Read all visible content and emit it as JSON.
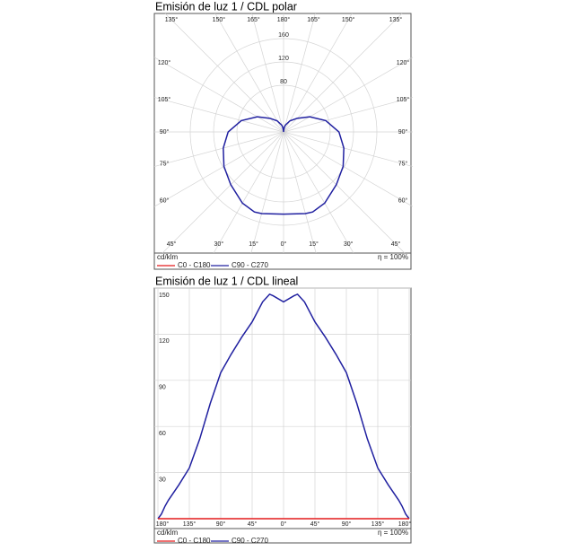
{
  "chart_data": [
    {
      "type": "polar",
      "title": "Emisión de luz 1 / CDL polar",
      "unit": "cd/klm",
      "efficiency": "η = 100%",
      "angle_ticks": [
        {
          "value": 0,
          "label": "0°"
        },
        {
          "value": 15,
          "label": "15°"
        },
        {
          "value": 30,
          "label": "30°"
        },
        {
          "value": 45,
          "label": "45°"
        },
        {
          "value": 60,
          "label": "60°"
        },
        {
          "value": 75,
          "label": "75°"
        },
        {
          "value": 90,
          "label": "90°"
        },
        {
          "value": 105,
          "label": "105°"
        },
        {
          "value": 120,
          "label": "120°"
        },
        {
          "value": 135,
          "label": "135°"
        },
        {
          "value": 150,
          "label": "150°"
        },
        {
          "value": 165,
          "label": "165°"
        },
        {
          "value": 180,
          "label": "180°"
        }
      ],
      "rlim": [
        0,
        160
      ],
      "rticks": [
        80,
        120,
        160
      ],
      "x": [
        -180,
        -175,
        -170,
        -165,
        -150,
        -135,
        -120,
        -105,
        -90,
        -75,
        -60,
        -45,
        -30,
        -20,
        -15,
        0,
        15,
        20,
        30,
        45,
        60,
        75,
        90,
        105,
        120,
        135,
        150,
        165,
        170,
        175,
        180
      ],
      "series": [
        {
          "name": "C0 - C180",
          "color": "#e41a1c",
          "values": [
            0,
            0,
            0,
            0,
            0,
            0,
            0,
            0,
            0,
            0,
            0,
            0,
            0,
            0,
            0,
            0,
            0,
            0,
            0,
            0,
            0,
            0,
            0,
            0,
            0,
            0,
            0,
            0,
            0,
            0,
            0
          ]
        },
        {
          "name": "C90 - C270",
          "color": "#2020a0",
          "values": [
            0,
            3,
            8,
            12,
            22,
            33,
            52,
            75,
            95,
            107,
            118,
            128,
            141,
            146,
            145,
            141,
            145,
            146,
            141,
            128,
            118,
            107,
            95,
            75,
            52,
            33,
            22,
            12,
            8,
            3,
            0
          ]
        }
      ]
    },
    {
      "type": "line",
      "title": "Emisión de luz 1 / CDL lineal",
      "unit": "cd/klm",
      "efficiency": "η = 100%",
      "xlim": [
        -180,
        180
      ],
      "xticks": [
        {
          "value": -180,
          "label": "180°"
        },
        {
          "value": -135,
          "label": "135°"
        },
        {
          "value": -90,
          "label": "90°"
        },
        {
          "value": -45,
          "label": "45°"
        },
        {
          "value": 0,
          "label": "0°"
        },
        {
          "value": 45,
          "label": "45°"
        },
        {
          "value": 90,
          "label": "90°"
        },
        {
          "value": 135,
          "label": "135°"
        },
        {
          "value": 180,
          "label": "180°"
        }
      ],
      "ylim": [
        0,
        150
      ],
      "yticks": [
        30,
        60,
        90,
        120,
        150
      ],
      "grid": true,
      "x": [
        -180,
        -175,
        -170,
        -165,
        -150,
        -135,
        -120,
        -105,
        -90,
        -75,
        -60,
        -45,
        -30,
        -20,
        -15,
        0,
        15,
        20,
        30,
        45,
        60,
        75,
        90,
        105,
        120,
        135,
        150,
        165,
        170,
        175,
        180
      ],
      "series": [
        {
          "name": "C0 - C180",
          "color": "#e41a1c",
          "values": [
            0,
            0,
            0,
            0,
            0,
            0,
            0,
            0,
            0,
            0,
            0,
            0,
            0,
            0,
            0,
            0,
            0,
            0,
            0,
            0,
            0,
            0,
            0,
            0,
            0,
            0,
            0,
            0,
            0,
            0,
            0
          ]
        },
        {
          "name": "C90 - C270",
          "color": "#2020a0",
          "values": [
            0,
            3,
            8,
            12,
            22,
            33,
            52,
            75,
            95,
            107,
            118,
            128,
            141,
            146,
            145,
            141,
            145,
            146,
            141,
            128,
            118,
            107,
            95,
            75,
            52,
            33,
            22,
            12,
            8,
            3,
            0
          ]
        }
      ]
    }
  ]
}
